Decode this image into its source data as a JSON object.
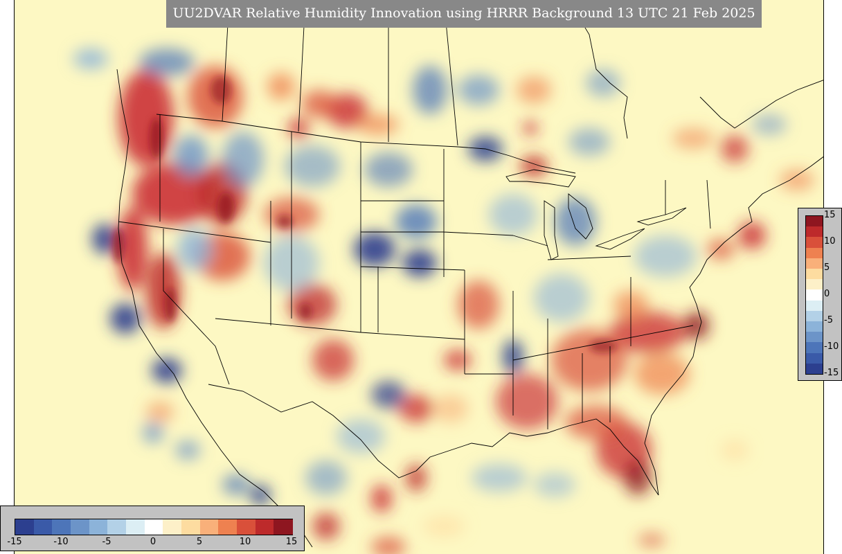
{
  "title": "UU2DVAR Relative Humidity Innovation using HRRR Background 13 UTC 21 Feb 2025",
  "colorbar": {
    "min": -15,
    "max": 15,
    "right_tick_labels": [
      "15",
      "10",
      "5",
      "0",
      "-5",
      "-10",
      "-15"
    ],
    "bottom_tick_labels": [
      "-15",
      "-10",
      "-5",
      "0",
      "5",
      "10",
      "15"
    ],
    "colors": [
      "#2c3f8f",
      "#3a5aa8",
      "#4d75b9",
      "#6c94c8",
      "#8cb3d9",
      "#b3d1e7",
      "#dceef4",
      "#ffffff",
      "#fdf0c8",
      "#fddca0",
      "#f9b07a",
      "#ee8150",
      "#d9503a",
      "#bd2a2b",
      "#8e1620"
    ]
  },
  "map": {
    "background_color": "#fdf8c3",
    "positive_color": "#c8272f",
    "negative_color": "#2b4a9b"
  }
}
